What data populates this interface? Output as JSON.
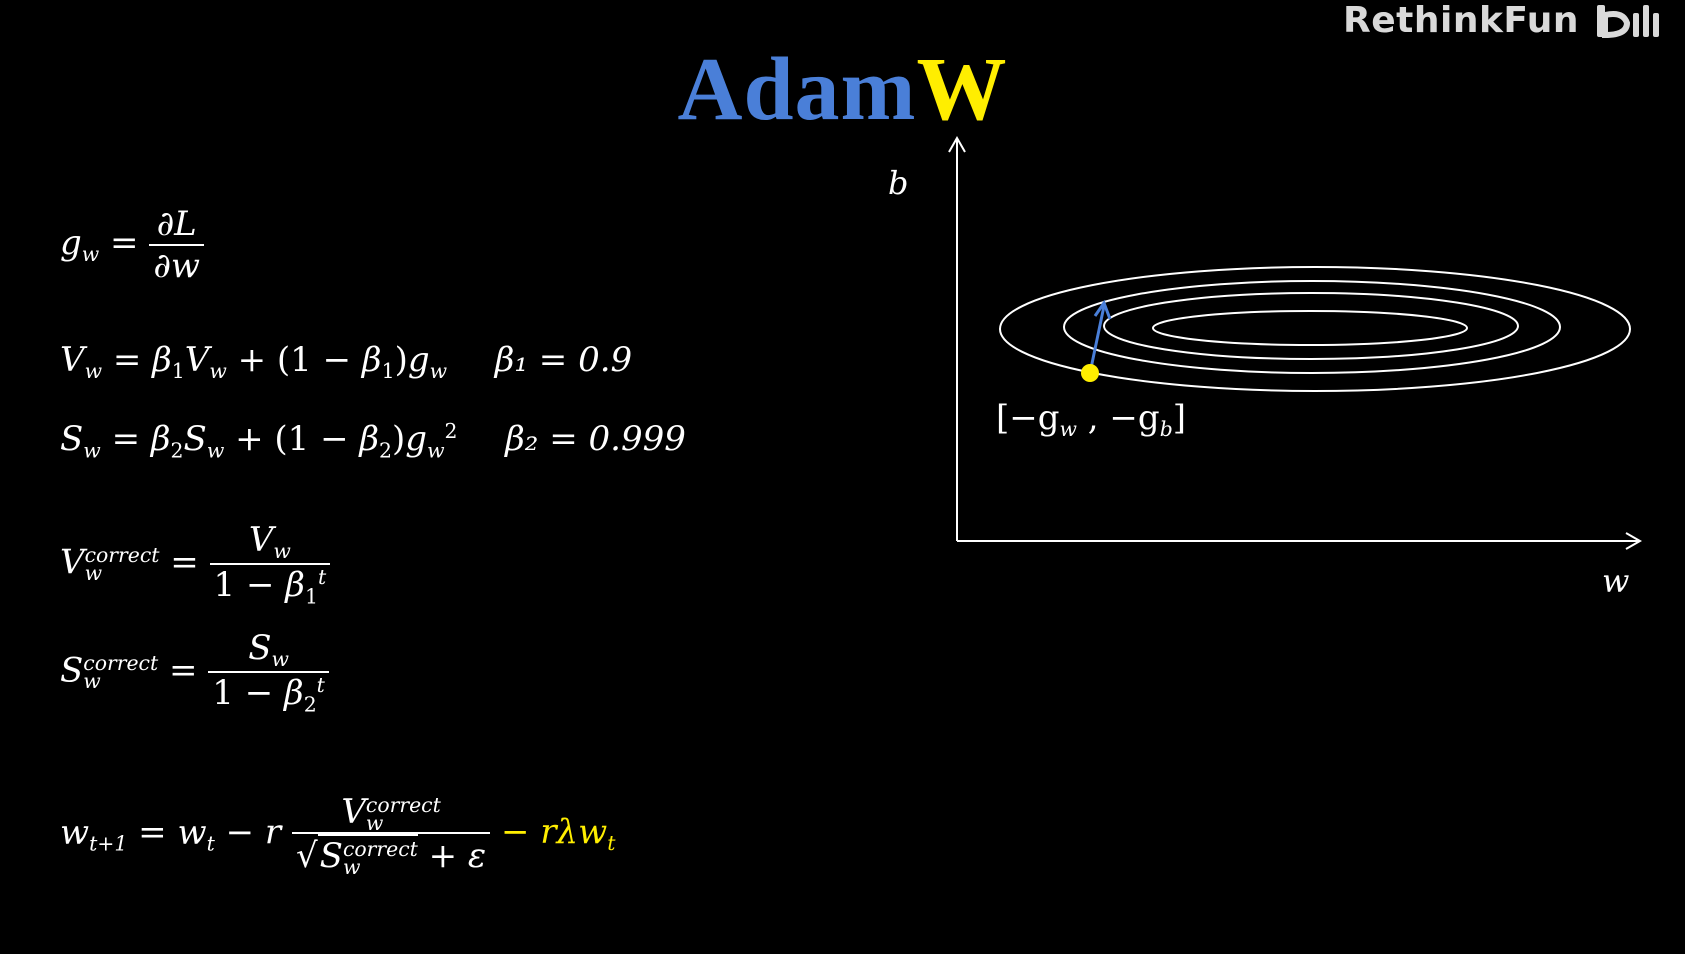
{
  "watermark": {
    "text": "RethinkFun",
    "logo": "bilibili-logo"
  },
  "title": {
    "part1": "Adam",
    "part2": "W",
    "part1_color": "#4a7fd8",
    "part2_color": "#ffee00"
  },
  "equations": {
    "grad_lhs": "g",
    "grad_lhs_sub": "w",
    "grad_num": "∂L",
    "grad_den": "∂w",
    "v_update": "V",
    "v_beta_value": "β₁ = 0.9",
    "s_beta_value": "β₂ = 0.999",
    "correct_sup": "correct",
    "decay_term": "− rλw",
    "decay_sub": "t"
  },
  "graph": {
    "y_axis_label": "b",
    "x_axis_label": "w",
    "vector_label_open": "[−g",
    "vector_label_sub1": "w",
    "vector_label_mid": " , −g",
    "vector_label_sub2": "b",
    "vector_label_close": "]",
    "point_color": "#ffee00",
    "arrow_color": "#4a7fd8"
  }
}
